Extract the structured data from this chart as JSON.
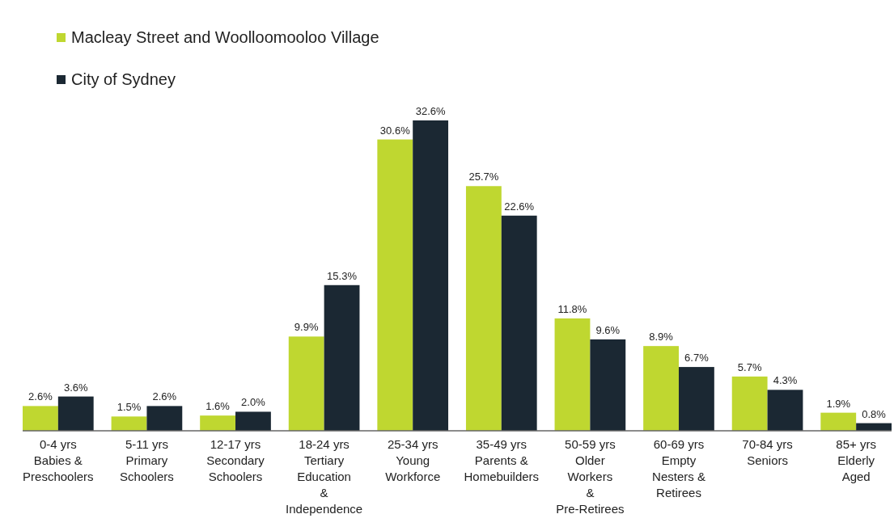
{
  "chart_data": {
    "type": "bar",
    "categories": [
      "0-4 yrs\nBabies &\nPreschoolers",
      "5-11 yrs\nPrimary\nSchoolers",
      "12-17 yrs\nSecondary\nSchoolers",
      "18-24 yrs\nTertiary\nEducation\n&\nIndependence",
      "25-34 yrs\nYoung\nWorkforce",
      "35-49 yrs\nParents &\nHomebuilders",
      "50-59 yrs\nOlder\nWorkers\n&\nPre-Retirees",
      "60-69 yrs\nEmpty\nNesters &\nRetirees",
      "70-84 yrs\nSeniors",
      "85+ yrs\nElderly\nAged"
    ],
    "series": [
      {
        "name": "Macleay Street and Woolloomooloo Village",
        "color": "#bfd730",
        "values": [
          2.6,
          1.5,
          1.6,
          9.9,
          30.6,
          25.7,
          11.8,
          8.9,
          5.7,
          1.9
        ],
        "value_labels": [
          "2.6%",
          "1.5%",
          "1.6%",
          "9.9%",
          "30.6%",
          "25.7%",
          "11.8%",
          "8.9%",
          "5.7%",
          "1.9%"
        ]
      },
      {
        "name": "City of Sydney",
        "color": "#1b2833",
        "values": [
          3.6,
          2.6,
          2.0,
          15.3,
          32.6,
          22.6,
          9.6,
          6.7,
          4.3,
          0.8
        ],
        "value_labels": [
          "3.6%",
          "2.6%",
          "2.0%",
          "15.3%",
          "32.6%",
          "22.6%",
          "9.6%",
          "6.7%",
          "4.3%",
          "0.8%"
        ]
      }
    ],
    "legend": "top left"
  }
}
